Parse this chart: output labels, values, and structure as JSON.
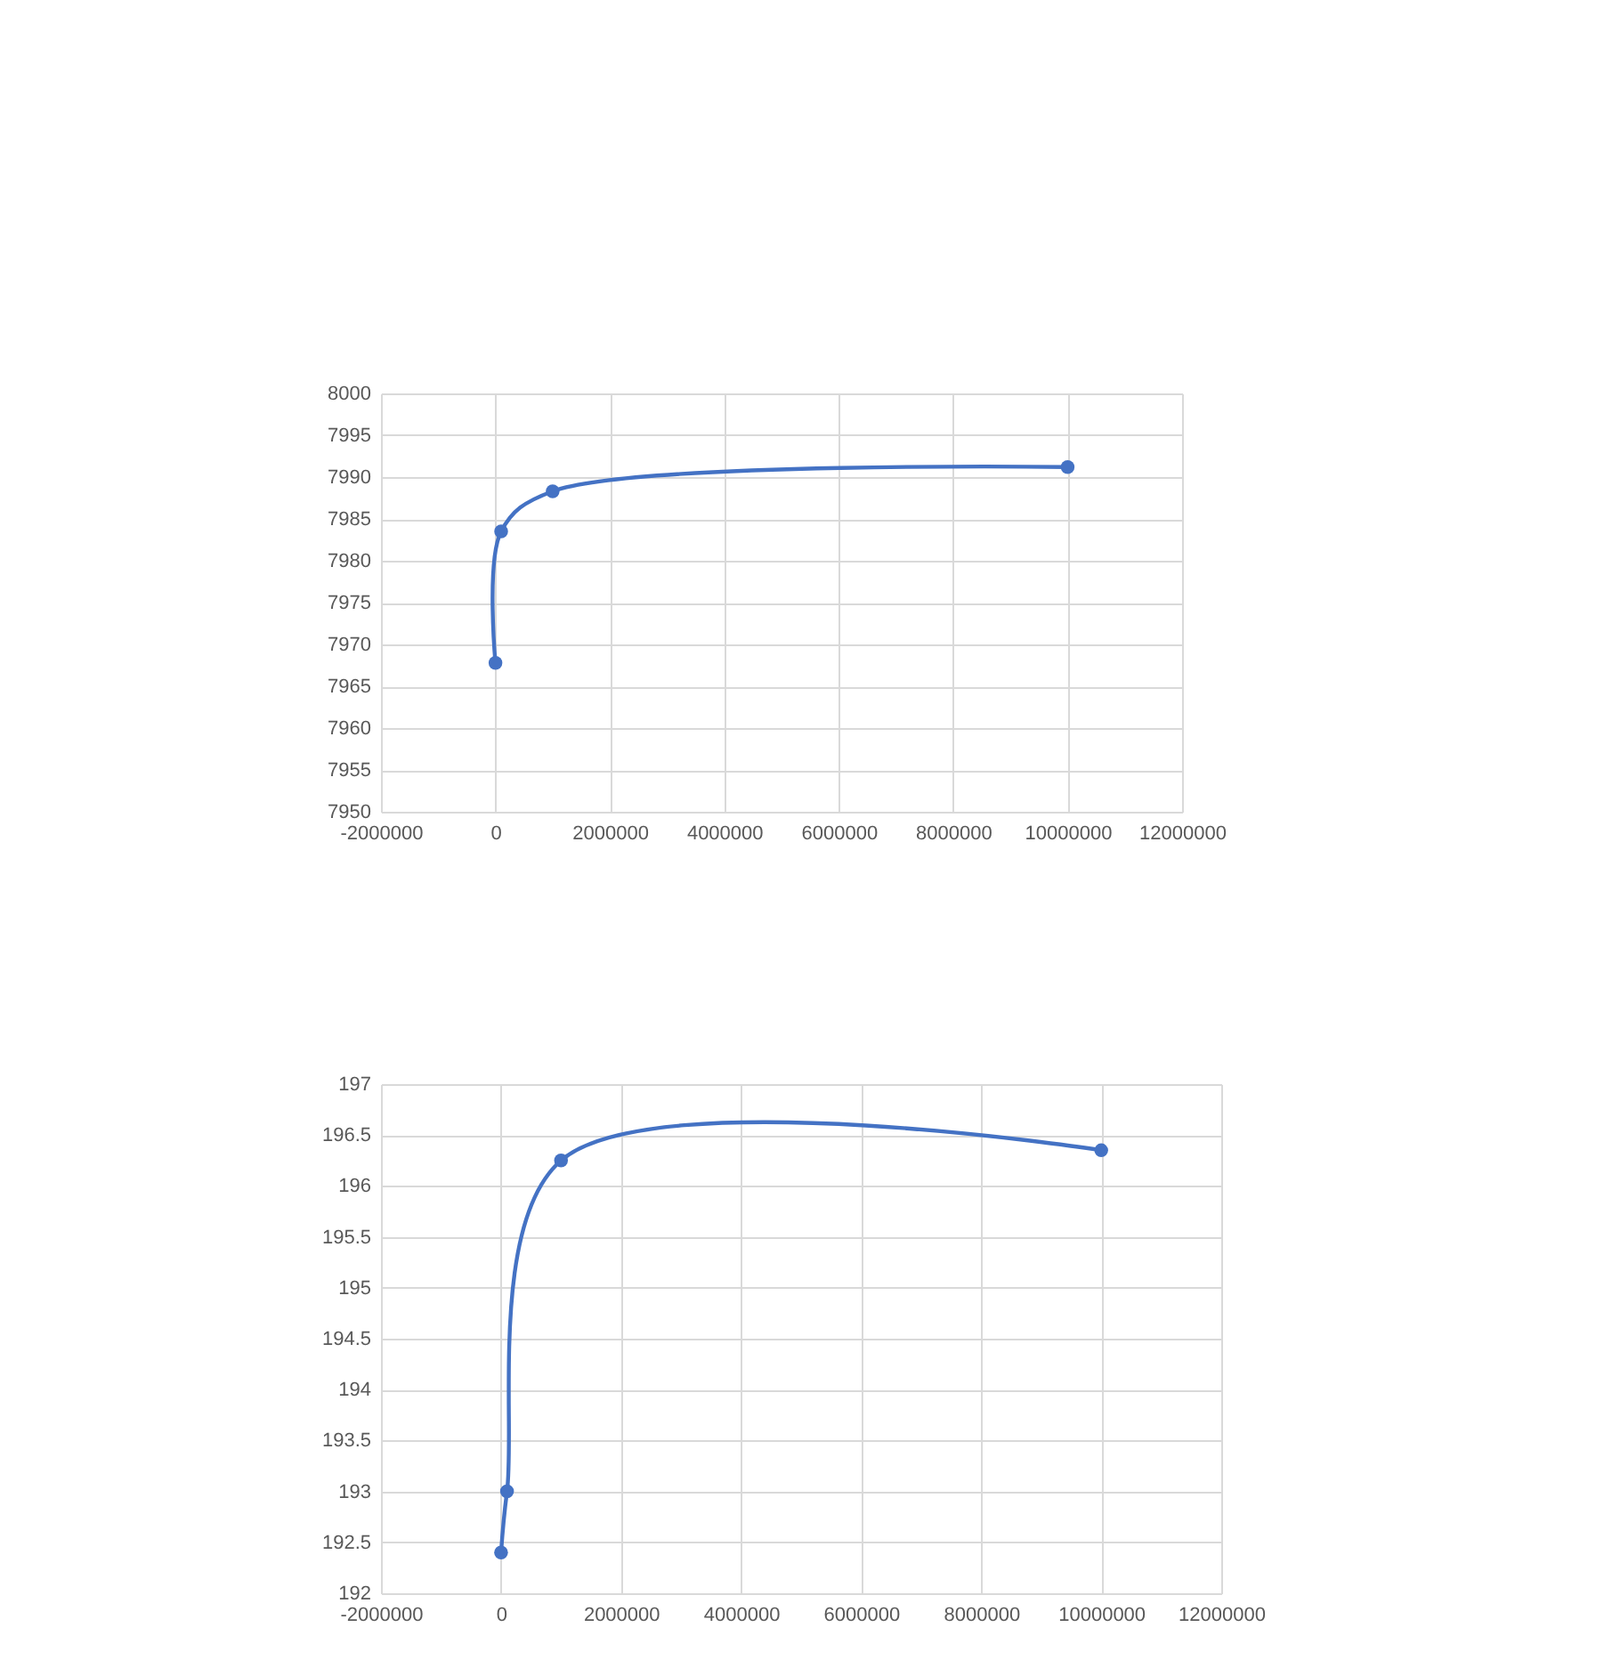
{
  "chart_data": [
    {
      "type": "line",
      "x": [
        1000,
        100000,
        1000000,
        10000000
      ],
      "series": [
        {
          "color": "#4472c4",
          "values": [
            7967.8,
            7983.5,
            7988.3,
            7991.2
          ]
        }
      ],
      "xlim": [
        -2000000,
        12000000
      ],
      "xticks": [
        -2000000,
        0,
        2000000,
        4000000,
        6000000,
        8000000,
        10000000,
        12000000
      ],
      "ylim": [
        7950,
        8000
      ],
      "yticks": [
        7950,
        7955,
        7960,
        7965,
        7970,
        7975,
        7980,
        7985,
        7990,
        7995,
        8000
      ],
      "grid": true,
      "marker": "circle",
      "line_style": "solid"
    },
    {
      "type": "line",
      "x": [
        1000,
        100000,
        1000000,
        10000000
      ],
      "series": [
        {
          "color": "#4472c4",
          "values": [
            192.4,
            193.0,
            196.25,
            196.35
          ]
        }
      ],
      "xlim": [
        -2000000,
        12000000
      ],
      "xticks": [
        -2000000,
        0,
        2000000,
        4000000,
        6000000,
        8000000,
        10000000,
        12000000
      ],
      "ylim": [
        192,
        197
      ],
      "yticks": [
        192,
        192.5,
        193,
        193.5,
        194,
        194.5,
        195,
        195.5,
        196,
        196.5,
        197
      ],
      "grid": true,
      "marker": "circle",
      "line_style": "solid"
    }
  ]
}
